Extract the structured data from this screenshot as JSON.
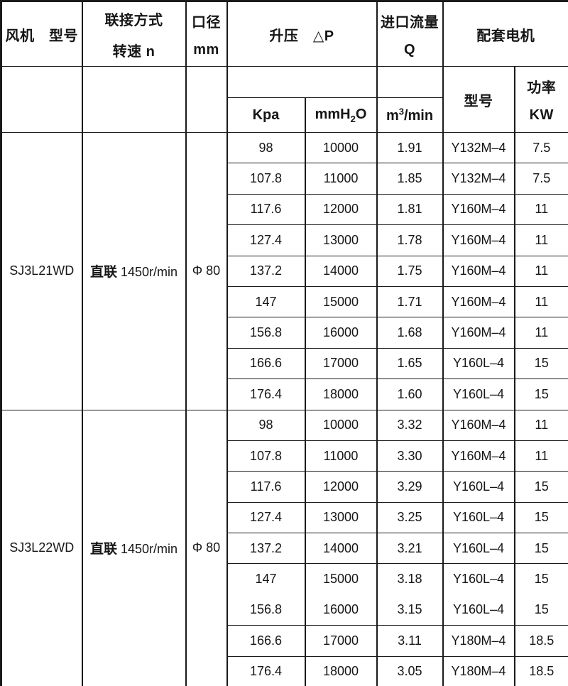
{
  "table": {
    "headers": {
      "fan_model": "风机　型号",
      "connection_line1": "联接方式",
      "connection_line2": "转速 n",
      "diameter_line1": "口径",
      "diameter_line2": "mm",
      "pressure": "升压　△P",
      "flow_line1": "进口流量",
      "flow_line2": "Q",
      "motor": "配套电机",
      "kpa": "Kpa",
      "mmh2o_pre": "mmH",
      "mmh2o_sub": "2",
      "mmh2o_post": "O",
      "flow_unit_pre": "m",
      "flow_unit_sup": "3",
      "flow_unit_post": "/min",
      "motor_model": "型号",
      "power_line1": "功率",
      "power_line2": "KW"
    },
    "border_color": "#1a1a1a",
    "groups": [
      {
        "model": "SJ3L21WD",
        "drive_prefix": "直联",
        "drive_speed": "1450r/min",
        "diameter": "Φ 80",
        "rows": [
          [
            "98",
            "10000",
            "1.91",
            "Y132M–4",
            "7.5"
          ],
          [
            "107.8",
            "11000",
            "1.85",
            "Y132M–4",
            "7.5"
          ],
          [
            "117.6",
            "12000",
            "1.81",
            "Y160M–4",
            "11"
          ],
          [
            "127.4",
            "13000",
            "1.78",
            "Y160M–4",
            "11"
          ],
          [
            "137.2",
            "14000",
            "1.75",
            "Y160M–4",
            "11"
          ],
          [
            "147",
            "15000",
            "1.71",
            "Y160M–4",
            "11"
          ],
          [
            "156.8",
            "16000",
            "1.68",
            "Y160M–4",
            "11"
          ],
          [
            "166.6",
            "17000",
            "1.65",
            "Y160L–4",
            "15"
          ],
          [
            "176.4",
            "18000",
            "1.60",
            "Y160L–4",
            "15"
          ]
        ]
      },
      {
        "model": "SJ3L22WD",
        "drive_prefix": "直联",
        "drive_speed": "1450r/min",
        "diameter": "Φ 80",
        "rows": [
          [
            "98",
            "10000",
            "3.32",
            "Y160M–4",
            "11"
          ],
          [
            "107.8",
            "11000",
            "3.30",
            "Y160M–4",
            "11"
          ],
          [
            "117.6",
            "12000",
            "3.29",
            "Y160L–4",
            "15"
          ],
          [
            "127.4",
            "13000",
            "3.25",
            "Y160L–4",
            "15"
          ],
          [
            "137.2",
            "14000",
            "3.21",
            "Y160L–4",
            "15"
          ],
          [
            "147",
            "15000",
            "3.18",
            "Y160L–4",
            "15"
          ],
          [
            "156.8",
            "16000",
            "3.15",
            "Y160L–4",
            "15"
          ],
          [
            "166.6",
            "17000",
            "3.11",
            "Y180M–4",
            "18.5"
          ],
          [
            "176.4",
            "18000",
            "3.05",
            "Y180M–4",
            "18.5"
          ]
        ]
      }
    ]
  }
}
